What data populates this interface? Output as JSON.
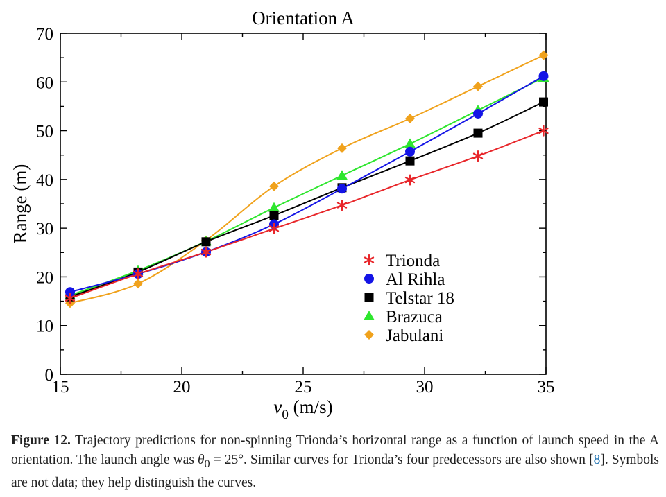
{
  "chart_data": {
    "type": "line",
    "title": "Orientation A",
    "xlabel_main": "v",
    "xlabel_sub": "0",
    "xlabel_unit": " (m/s)",
    "ylabel": "Range (m)",
    "xlim": [
      15,
      35
    ],
    "ylim": [
      0,
      70
    ],
    "xticks": [
      15,
      20,
      25,
      30,
      35
    ],
    "yticks": [
      0,
      10,
      20,
      30,
      40,
      50,
      60,
      70
    ],
    "grid": false,
    "legend_position": "lower-right",
    "series": [
      {
        "name": "Trionda",
        "marker": "asterisk",
        "color": "#e8262a",
        "x": [
          15.4,
          18.2,
          21.0,
          23.8,
          26.6,
          29.4,
          32.2,
          34.9
        ],
        "y": [
          15.6,
          20.6,
          25.1,
          29.9,
          34.7,
          39.9,
          44.8,
          50.0
        ]
      },
      {
        "name": "Al Rihla",
        "marker": "circle",
        "color": "#1414e6",
        "x": [
          15.4,
          18.2,
          21.0,
          23.8,
          26.6,
          29.4,
          32.2,
          34.9
        ],
        "y": [
          16.9,
          20.6,
          25.1,
          30.8,
          38.1,
          45.7,
          53.5,
          61.2
        ]
      },
      {
        "name": "Telstar 18",
        "marker": "square",
        "color": "#000000",
        "x": [
          15.4,
          18.2,
          21.0,
          23.8,
          26.6,
          29.4,
          32.2,
          34.9
        ],
        "y": [
          15.9,
          21.0,
          27.2,
          32.6,
          38.3,
          43.8,
          49.5,
          55.9
        ]
      },
      {
        "name": "Brazuca",
        "marker": "triangle",
        "color": "#2ee62e",
        "x": [
          15.4,
          18.2,
          21.0,
          23.8,
          26.6,
          29.4,
          32.2,
          34.9
        ],
        "y": [
          16.2,
          21.3,
          27.3,
          34.2,
          40.8,
          47.3,
          54.2,
          60.9
        ]
      },
      {
        "name": "Jabulani",
        "marker": "diamond",
        "color": "#f0a21c",
        "x": [
          15.4,
          18.2,
          21.0,
          23.8,
          26.6,
          29.4,
          32.2,
          34.9
        ],
        "y": [
          14.6,
          18.6,
          27.5,
          38.6,
          46.4,
          52.5,
          59.1,
          65.5
        ]
      }
    ]
  },
  "caption": {
    "label": "Figure 12.",
    "text_1": " Trajectory predictions for non-spinning Trionda’s horizontal range as a function of launch speed in the A orientation. The launch angle was ",
    "theta": "θ",
    "theta_sub": "0",
    "text_2": " = 25°. Similar curves for Trionda’s four predecessors are also shown [",
    "ref": "8",
    "text_3": "]. Symbols are not data; they help distinguish the curves."
  }
}
